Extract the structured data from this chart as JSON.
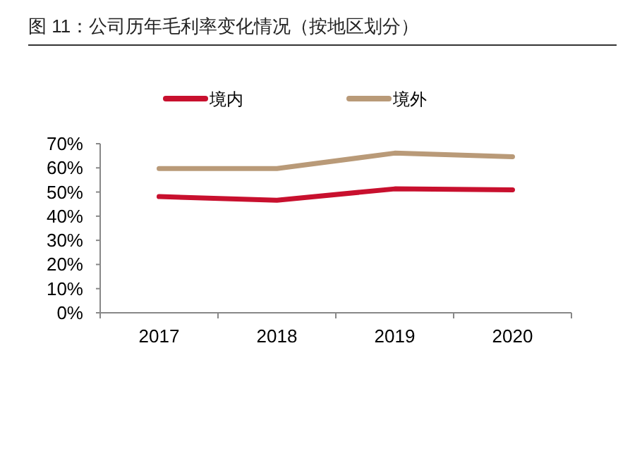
{
  "chart_data": {
    "type": "line",
    "title": "图 11：公司历年毛利率变化情况（按地区划分）",
    "categories": [
      "2017",
      "2018",
      "2019",
      "2020"
    ],
    "series": [
      {
        "name": "境内",
        "color": "#c8102e",
        "values": [
          48.1,
          46.6,
          51.3,
          50.9
        ]
      },
      {
        "name": "境外",
        "color": "#b99a78",
        "values": [
          59.7,
          59.7,
          66.1,
          64.6
        ]
      }
    ],
    "ylim": [
      0,
      70
    ],
    "yticks": [
      {
        "value": 0,
        "label": "0%"
      },
      {
        "value": 10,
        "label": "10%"
      },
      {
        "value": 20,
        "label": "20%"
      },
      {
        "value": 30,
        "label": "30%"
      },
      {
        "value": 40,
        "label": "40%"
      },
      {
        "value": 50,
        "label": "50%"
      },
      {
        "value": 60,
        "label": "60%"
      },
      {
        "value": 70,
        "label": "70%"
      }
    ],
    "grid": false,
    "legend": "top",
    "marker": "none",
    "line_style": "solid"
  }
}
